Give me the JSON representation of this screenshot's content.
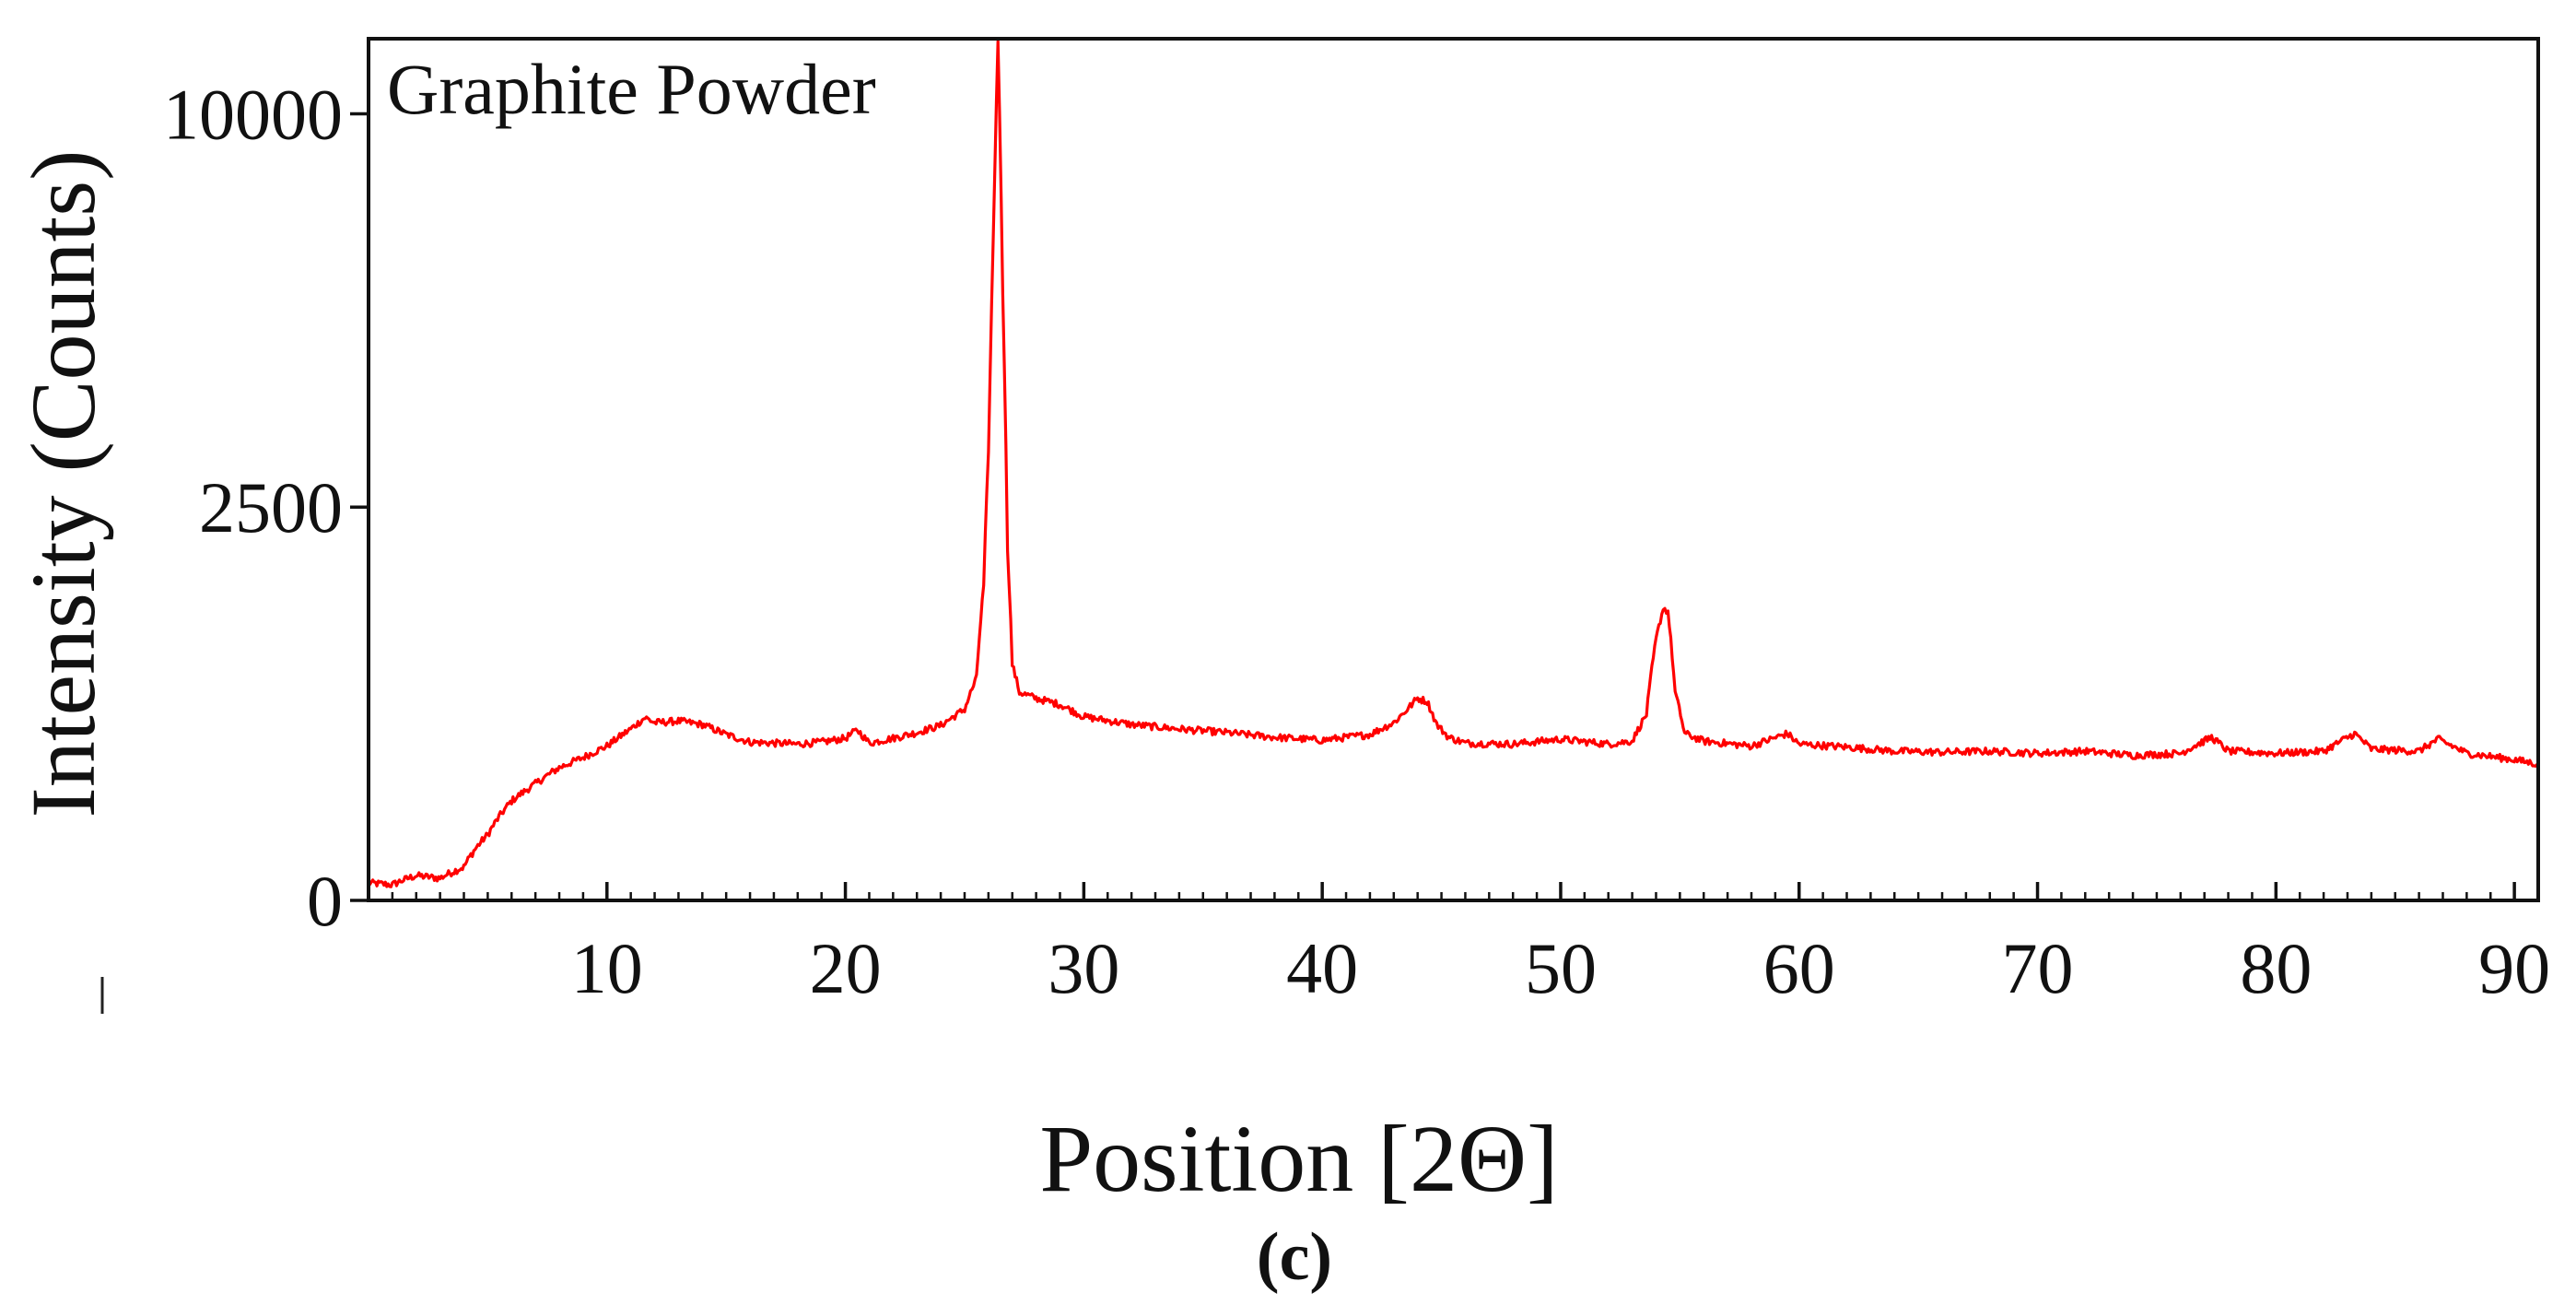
{
  "chart_data": {
    "type": "line",
    "title": "Graphite Powder",
    "xlabel": "Position [2Θ]",
    "ylabel": "Intensity (Counts)",
    "caption": "(c)",
    "xlim": [
      0,
      91
    ],
    "x_ticks": [
      10,
      20,
      30,
      40,
      50,
      60,
      70,
      80,
      90
    ],
    "x_minor_step": 1,
    "y_ticks": [
      0,
      2500,
      10000
    ],
    "y_scale": "sqrt",
    "ylim": [
      0,
      12000
    ],
    "grid": false,
    "legend": "none",
    "series": [
      {
        "name": "Graphite Powder",
        "color": "#ff0000",
        "x": [
          0,
          1,
          2,
          3,
          4,
          5,
          6,
          7,
          8,
          9,
          10,
          11,
          11.6,
          12,
          13,
          14,
          15,
          16,
          17,
          18,
          19,
          20,
          20.5,
          21,
          22,
          23,
          24,
          25,
          25.5,
          25.8,
          26.0,
          26.2,
          26.4,
          26.6,
          26.8,
          27.0,
          27.3,
          28,
          29,
          30,
          32,
          34,
          36,
          38,
          40,
          42,
          43,
          43.5,
          44,
          44.4,
          44.8,
          45.3,
          46,
          48,
          50,
          52,
          53,
          53.6,
          54.0,
          54.3,
          54.5,
          54.8,
          55.2,
          56,
          58,
          59.5,
          60,
          62,
          64,
          66,
          68,
          70,
          72,
          74,
          76,
          77.3,
          78,
          80,
          82,
          83.3,
          84,
          86,
          86.8,
          88,
          90,
          91
        ],
        "y": [
          5,
          4,
          10,
          8,
          18,
          70,
          160,
          220,
          285,
          330,
          385,
          475,
          540,
          510,
          520,
          500,
          445,
          405,
          400,
          395,
          405,
          425,
          470,
          400,
          425,
          455,
          495,
          590,
          800,
          1600,
          3200,
          7000,
          12000,
          6000,
          2000,
          900,
          700,
          660,
          620,
          545,
          500,
          475,
          455,
          430,
          415,
          445,
          510,
          580,
          660,
          640,
          500,
          430,
          400,
          395,
          420,
          395,
          410,
          560,
          1100,
          1380,
          1350,
          700,
          450,
          410,
          385,
          450,
          395,
          380,
          360,
          355,
          360,
          350,
          360,
          340,
          350,
          430,
          360,
          350,
          360,
          450,
          370,
          360,
          420,
          350,
          320,
          300
        ]
      }
    ]
  }
}
